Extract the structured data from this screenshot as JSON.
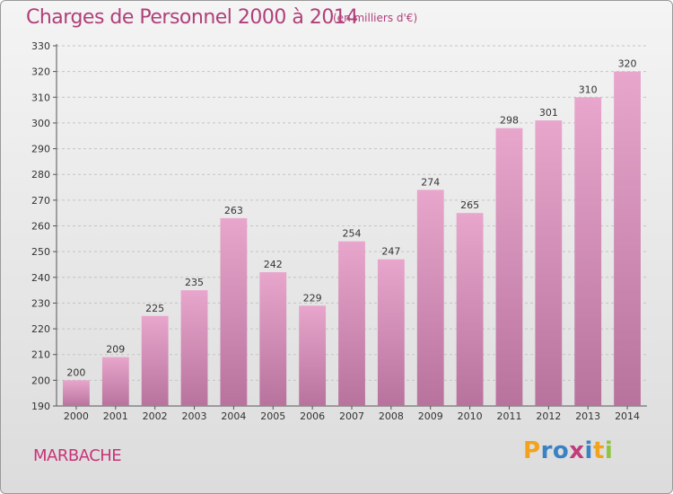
{
  "chart_data": {
    "type": "bar",
    "title": "Charges de Personnel 2000 à 2014",
    "subtitle": "(en milliers d'€)",
    "categories": [
      "2000",
      "2001",
      "2002",
      "2003",
      "2004",
      "2005",
      "2006",
      "2007",
      "2008",
      "2009",
      "2010",
      "2011",
      "2012",
      "2013",
      "2014"
    ],
    "values": [
      200,
      209,
      225,
      235,
      263,
      242,
      229,
      254,
      247,
      274,
      265,
      298,
      301,
      310,
      320
    ],
    "ylim": [
      190,
      330
    ],
    "yticks": [
      190,
      200,
      210,
      220,
      230,
      240,
      250,
      260,
      270,
      280,
      290,
      300,
      310,
      320,
      330
    ],
    "grid": true,
    "legend": "none",
    "bar_color": "#d98bb7"
  },
  "location": "MARBACHE",
  "logo": {
    "text": "Proxiti",
    "letter_colors": [
      "#f2a31b",
      "#3b82c4",
      "#3b82c4",
      "#c23b7a",
      "#3b82c4",
      "#f2a31b",
      "#8cc63f"
    ]
  }
}
